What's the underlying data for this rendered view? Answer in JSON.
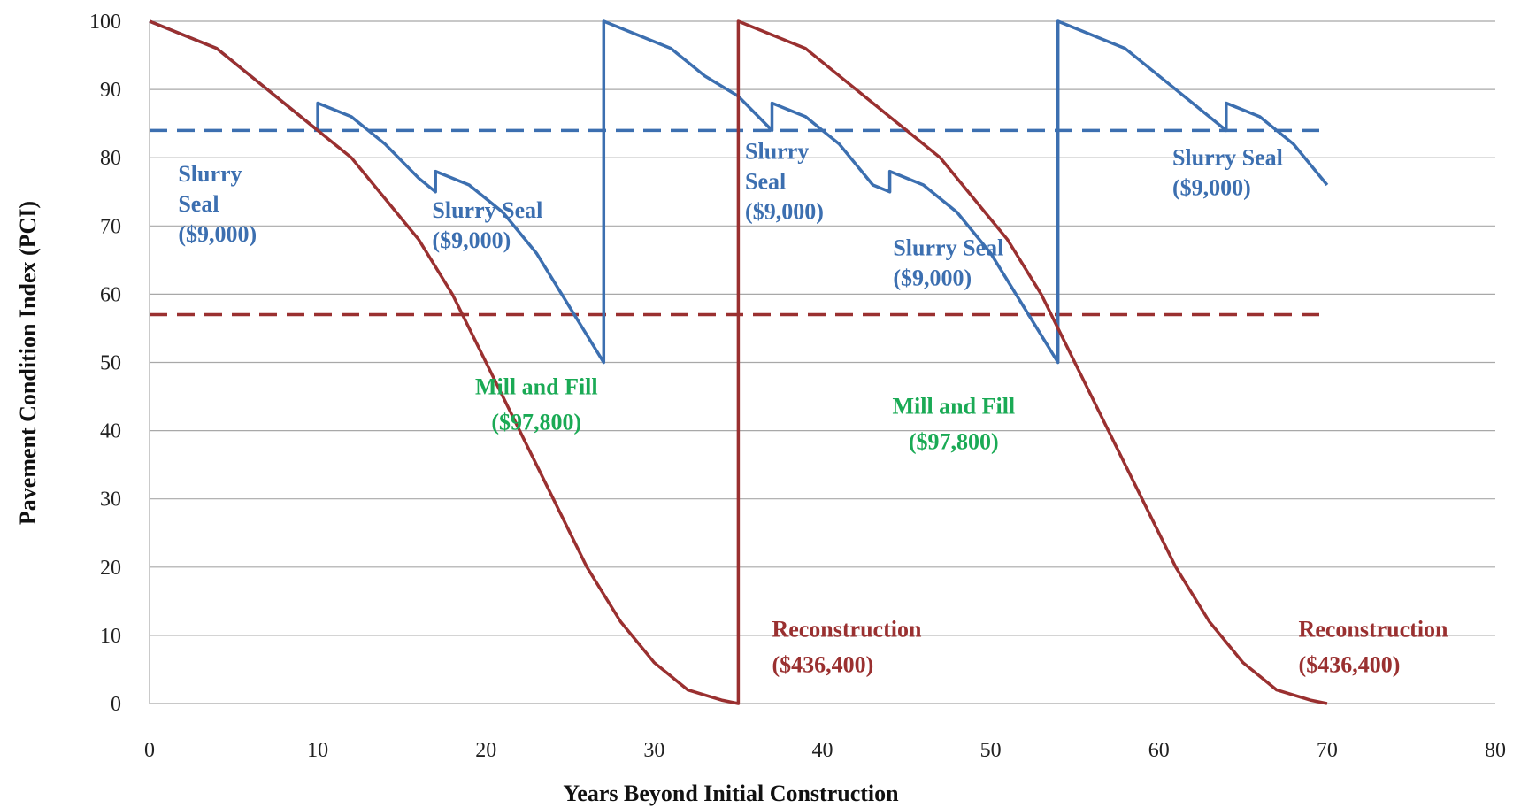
{
  "chart_data": {
    "type": "line",
    "title": "",
    "xlabel": "Years Beyond Initial Construction",
    "ylabel": "Pavement Condition Index (PCI)",
    "xlim": [
      0,
      80
    ],
    "ylim": [
      0,
      100
    ],
    "x_ticks": [
      0,
      10,
      20,
      30,
      40,
      50,
      60,
      70,
      80
    ],
    "y_ticks": [
      0,
      10,
      20,
      30,
      40,
      50,
      60,
      70,
      80,
      90,
      100
    ],
    "grid": "horizontal",
    "legend": "none",
    "series": [
      {
        "color": "#3c6fb0",
        "style": "solid",
        "points": [
          [
            0,
            100
          ],
          [
            2,
            98
          ],
          [
            4,
            96
          ],
          [
            6,
            92
          ],
          [
            8,
            88
          ],
          [
            10,
            84
          ],
          [
            10,
            88
          ],
          [
            12,
            86
          ],
          [
            14,
            82
          ],
          [
            16,
            77
          ],
          [
            17,
            75
          ],
          [
            17,
            78
          ],
          [
            19,
            76
          ],
          [
            21,
            72
          ],
          [
            23,
            66
          ],
          [
            25,
            58
          ],
          [
            27,
            50
          ],
          [
            27,
            100
          ],
          [
            29,
            98
          ],
          [
            31,
            96
          ],
          [
            33,
            92
          ],
          [
            35,
            89
          ],
          [
            37,
            84
          ],
          [
            37,
            88
          ],
          [
            39,
            86
          ],
          [
            41,
            82
          ],
          [
            43,
            76
          ],
          [
            44,
            75
          ],
          [
            44,
            78
          ],
          [
            46,
            76
          ],
          [
            48,
            72
          ],
          [
            50,
            66
          ],
          [
            52,
            58
          ],
          [
            54,
            50
          ],
          [
            54,
            100
          ],
          [
            56,
            98
          ],
          [
            58,
            96
          ],
          [
            60,
            92
          ],
          [
            62,
            88
          ],
          [
            64,
            84
          ],
          [
            64,
            88
          ],
          [
            66,
            86
          ],
          [
            68,
            82
          ],
          [
            70,
            76
          ]
        ]
      },
      {
        "color": "#9a3030",
        "style": "solid",
        "points": [
          [
            0,
            100
          ],
          [
            2,
            98
          ],
          [
            4,
            96
          ],
          [
            6,
            92
          ],
          [
            8,
            88
          ],
          [
            10,
            84
          ],
          [
            12,
            80
          ],
          [
            14,
            74
          ],
          [
            16,
            68
          ],
          [
            18,
            60
          ],
          [
            20,
            50
          ],
          [
            22,
            40
          ],
          [
            24,
            30
          ],
          [
            26,
            20
          ],
          [
            28,
            12
          ],
          [
            30,
            6
          ],
          [
            32,
            2
          ],
          [
            34,
            0.5
          ],
          [
            35,
            0
          ],
          [
            35,
            100
          ],
          [
            37,
            98
          ],
          [
            39,
            96
          ],
          [
            41,
            92
          ],
          [
            43,
            88
          ],
          [
            45,
            84
          ],
          [
            47,
            80
          ],
          [
            49,
            74
          ],
          [
            51,
            68
          ],
          [
            53,
            60
          ],
          [
            55,
            50
          ],
          [
            57,
            40
          ],
          [
            59,
            30
          ],
          [
            61,
            20
          ],
          [
            63,
            12
          ],
          [
            65,
            6
          ],
          [
            67,
            2
          ],
          [
            69,
            0.5
          ],
          [
            70,
            0
          ]
        ]
      }
    ],
    "thresholds": [
      {
        "y": 84,
        "color": "#3c6fb0",
        "style": "dashed",
        "x_range": [
          0,
          70
        ]
      },
      {
        "y": 57,
        "color": "#9a3030",
        "style": "dashed",
        "x_range": [
          0,
          70
        ]
      }
    ],
    "annotations": [
      {
        "lines": [
          "Slurry",
          "Seal",
          "($9,000)"
        ],
        "x": 1.7,
        "y": 76.5,
        "color": "#3c6fb0",
        "size": "small"
      },
      {
        "lines": [
          "Slurry Seal",
          "($9,000)"
        ],
        "x": 16.8,
        "y": 71.2,
        "color": "#3c6fb0",
        "size": "small"
      },
      {
        "lines": [
          "Slurry",
          "Seal",
          "($9,000)"
        ],
        "x": 35.4,
        "y": 79.8,
        "color": "#3c6fb0",
        "size": "small"
      },
      {
        "lines": [
          "Slurry Seal",
          "($9,000)"
        ],
        "x": 44.2,
        "y": 65.7,
        "color": "#3c6fb0",
        "size": "small"
      },
      {
        "lines": [
          "Slurry Seal",
          "($9,000)"
        ],
        "x": 60.8,
        "y": 78.9,
        "color": "#3c6fb0",
        "size": "small"
      },
      {
        "lines": [
          "Mill and Fill",
          "($97,800)"
        ],
        "x": 23.0,
        "y": 45.3,
        "color": "#1aaa55",
        "size": "large"
      },
      {
        "lines": [
          "Mill and Fill",
          "($97,800)"
        ],
        "x": 47.8,
        "y": 42.5,
        "color": "#1aaa55",
        "size": "large"
      },
      {
        "lines": [
          "Reconstruction",
          "($436,400)"
        ],
        "x": 37.0,
        "y": 9.8,
        "color": "#9a3030",
        "size": "large"
      },
      {
        "lines": [
          "Reconstruction",
          "($436,400)"
        ],
        "x": 68.3,
        "y": 9.8,
        "color": "#9a3030",
        "size": "large"
      }
    ]
  }
}
